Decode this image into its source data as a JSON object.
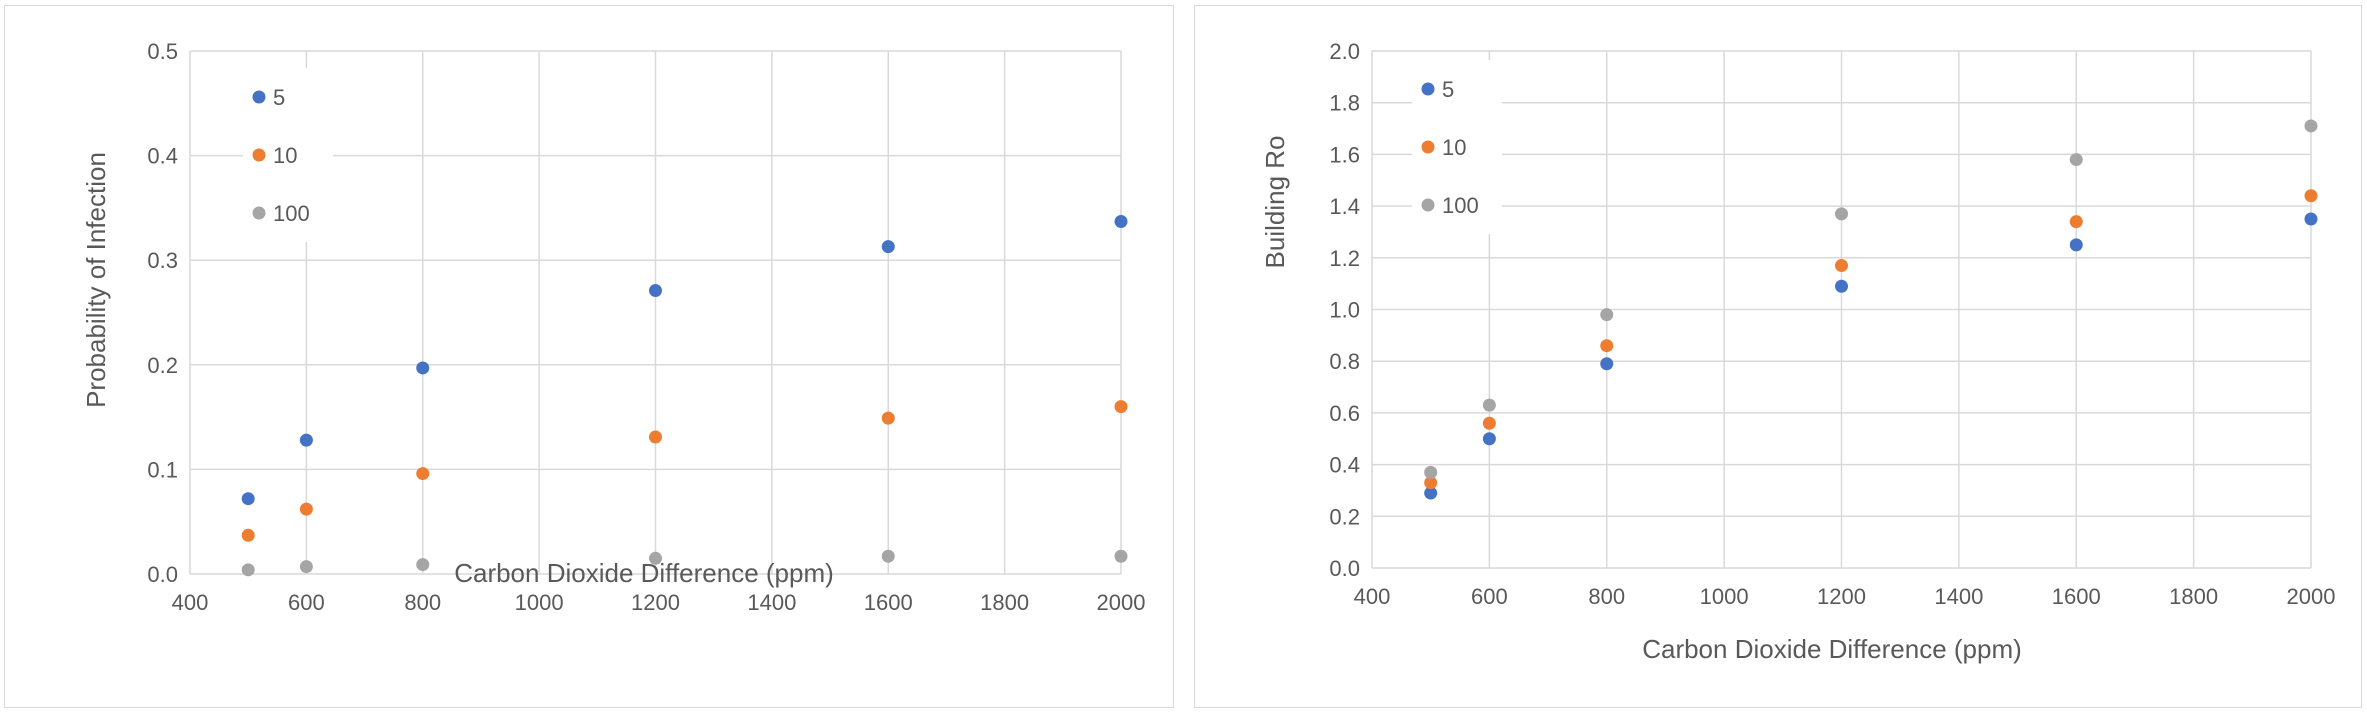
{
  "chart_data": [
    {
      "type": "scatter",
      "title": "",
      "xlabel": "Carbon Dioxide Difference (ppm)",
      "ylabel": "Probability of Infection",
      "xlim": [
        400,
        2000
      ],
      "ylim": [
        0,
        0.5
      ],
      "xticks": [
        "400",
        "600",
        "800",
        "1000",
        "1200",
        "1400",
        "1600",
        "1800",
        "2000"
      ],
      "yticks": [
        "0.0",
        "0.1",
        "0.2",
        "0.3",
        "0.4",
        "0.5"
      ],
      "grid": true,
      "legend": "top-left",
      "x": [
        500,
        600,
        800,
        1200,
        1600,
        2000
      ],
      "series": [
        {
          "name": "5",
          "color": "#4472c4",
          "values": [
            0.072,
            0.128,
            0.197,
            0.271,
            0.313,
            0.337
          ]
        },
        {
          "name": "10",
          "color": "#ed7d31",
          "values": [
            0.037,
            0.062,
            0.096,
            0.131,
            0.149,
            0.16
          ]
        },
        {
          "name": "100",
          "color": "#a5a5a5",
          "values": [
            0.004,
            0.007,
            0.009,
            0.015,
            0.017,
            0.017
          ]
        }
      ]
    },
    {
      "type": "scatter",
      "title": "",
      "xlabel": "Carbon Dioxide Difference (ppm)",
      "ylabel": "Building Ro",
      "xlim": [
        400,
        2000
      ],
      "ylim": [
        0,
        2.0
      ],
      "xticks": [
        "400",
        "600",
        "800",
        "1000",
        "1200",
        "1400",
        "1600",
        "1800",
        "2000"
      ],
      "yticks": [
        "0.0",
        "0.2",
        "0.4",
        "0.6",
        "0.8",
        "1.0",
        "1.2",
        "1.4",
        "1.6",
        "1.8",
        "2.0"
      ],
      "grid": true,
      "legend": "top-left",
      "x": [
        500,
        600,
        800,
        1200,
        1600,
        2000
      ],
      "series": [
        {
          "name": "5",
          "color": "#4472c4",
          "values": [
            0.29,
            0.5,
            0.79,
            1.09,
            1.25,
            1.35
          ]
        },
        {
          "name": "10",
          "color": "#ed7d31",
          "values": [
            0.33,
            0.56,
            0.86,
            1.17,
            1.34,
            1.44
          ]
        },
        {
          "name": "100",
          "color": "#a5a5a5",
          "values": [
            0.37,
            0.63,
            0.98,
            1.37,
            1.58,
            1.71
          ]
        }
      ]
    }
  ]
}
